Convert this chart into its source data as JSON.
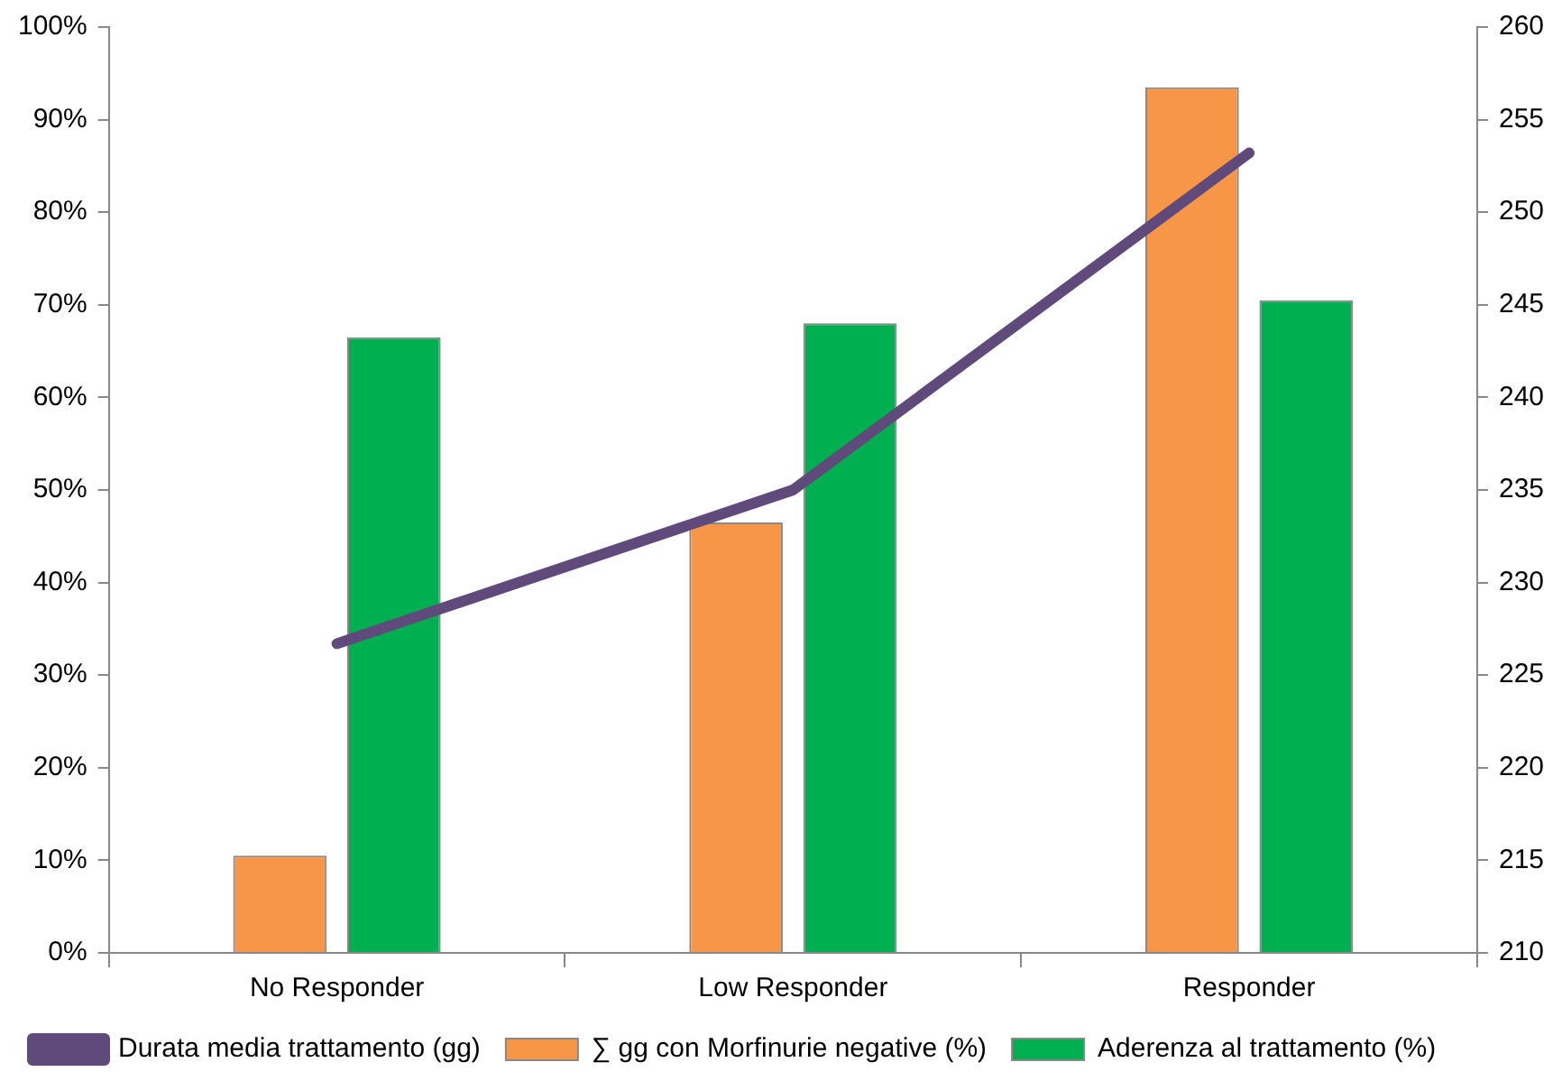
{
  "chart_data": {
    "type": "bar",
    "categories": [
      "No Responder",
      "Low Responder",
      "Responder"
    ],
    "series": [
      {
        "name": "∑ gg con Morfinurie negative (%)",
        "color": "#f79646",
        "values": [
          10.5,
          46.5,
          93.5
        ]
      },
      {
        "name": "Aderenza al trattamento (%)",
        "color": "#00b050",
        "values": [
          66.5,
          68,
          70.5
        ]
      },
      {
        "name": "Durata media trattamento (gg)",
        "type": "line",
        "axis": "y2",
        "color": "#604a7b",
        "values": [
          226.7,
          235,
          253.2
        ]
      }
    ],
    "ylim": [
      0,
      100
    ],
    "yticks": [
      {
        "value": 0,
        "label": "0%"
      },
      {
        "value": 10,
        "label": "10%"
      },
      {
        "value": 20,
        "label": "20%"
      },
      {
        "value": 30,
        "label": "30%"
      },
      {
        "value": 40,
        "label": "40%"
      },
      {
        "value": 50,
        "label": "50%"
      },
      {
        "value": 60,
        "label": "60%"
      },
      {
        "value": 70,
        "label": "70%"
      },
      {
        "value": 80,
        "label": "80%"
      },
      {
        "value": 90,
        "label": "90%"
      },
      {
        "value": 100,
        "label": "100%"
      }
    ],
    "y2lim": [
      210,
      260
    ],
    "y2ticks": [
      210,
      215,
      220,
      225,
      230,
      235,
      240,
      245,
      250,
      255,
      260
    ],
    "grid": false,
    "legend": "bottom",
    "marker": "none",
    "line_style": "solid"
  }
}
